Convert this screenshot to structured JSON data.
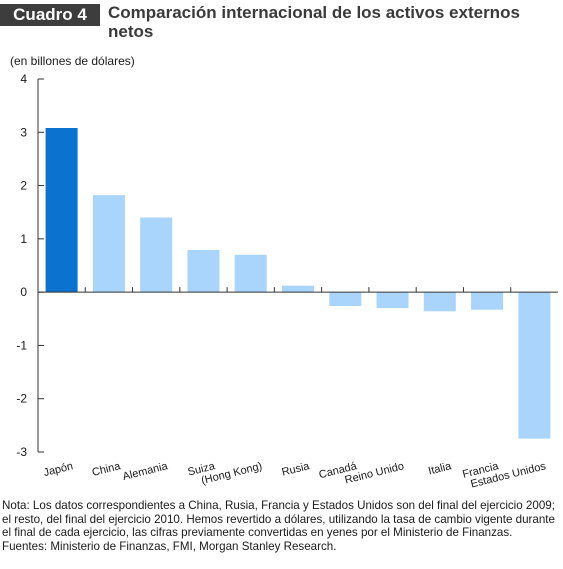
{
  "header": {
    "badge": "Cuadro 4",
    "title": "Comparación internacional de los activos externos netos"
  },
  "chart_data": {
    "type": "bar",
    "ylabel": "(en billones de dólares)",
    "ylim": [
      -3,
      4
    ],
    "yticks": [
      4,
      3,
      2,
      1,
      0,
      -1,
      -2,
      -3
    ],
    "grid": false,
    "categories": [
      "Japón",
      "China",
      "Alemania",
      "Suiza",
      "(Hong Kong)",
      "Rusia",
      "Canadá",
      "Reino Unido",
      "Italia",
      "Francia",
      "Estados Unidos"
    ],
    "values": [
      3.08,
      1.82,
      1.4,
      0.79,
      0.7,
      0.12,
      -0.26,
      -0.3,
      -0.36,
      -0.33,
      -2.75
    ],
    "colors": {
      "highlight": "#0a72cf",
      "default": "#a9d4fb",
      "axis": "#333333"
    },
    "highlight_index": 0
  },
  "footer": {
    "note": "Nota: Los datos correspondientes a China, Rusia, Francia y Estados Unidos son del final del ejercicio 2009; el resto, del final del ejercicio 2010. Hemos revertido a dólares, utilizando la tasa de cambio vigente durante el final de cada ejercicio, las cifras previamente convertidas en yenes por el Ministerio de Finanzas.",
    "sources": "Fuentes: Ministerio de Finanzas, FMI, Morgan Stanley Research."
  }
}
